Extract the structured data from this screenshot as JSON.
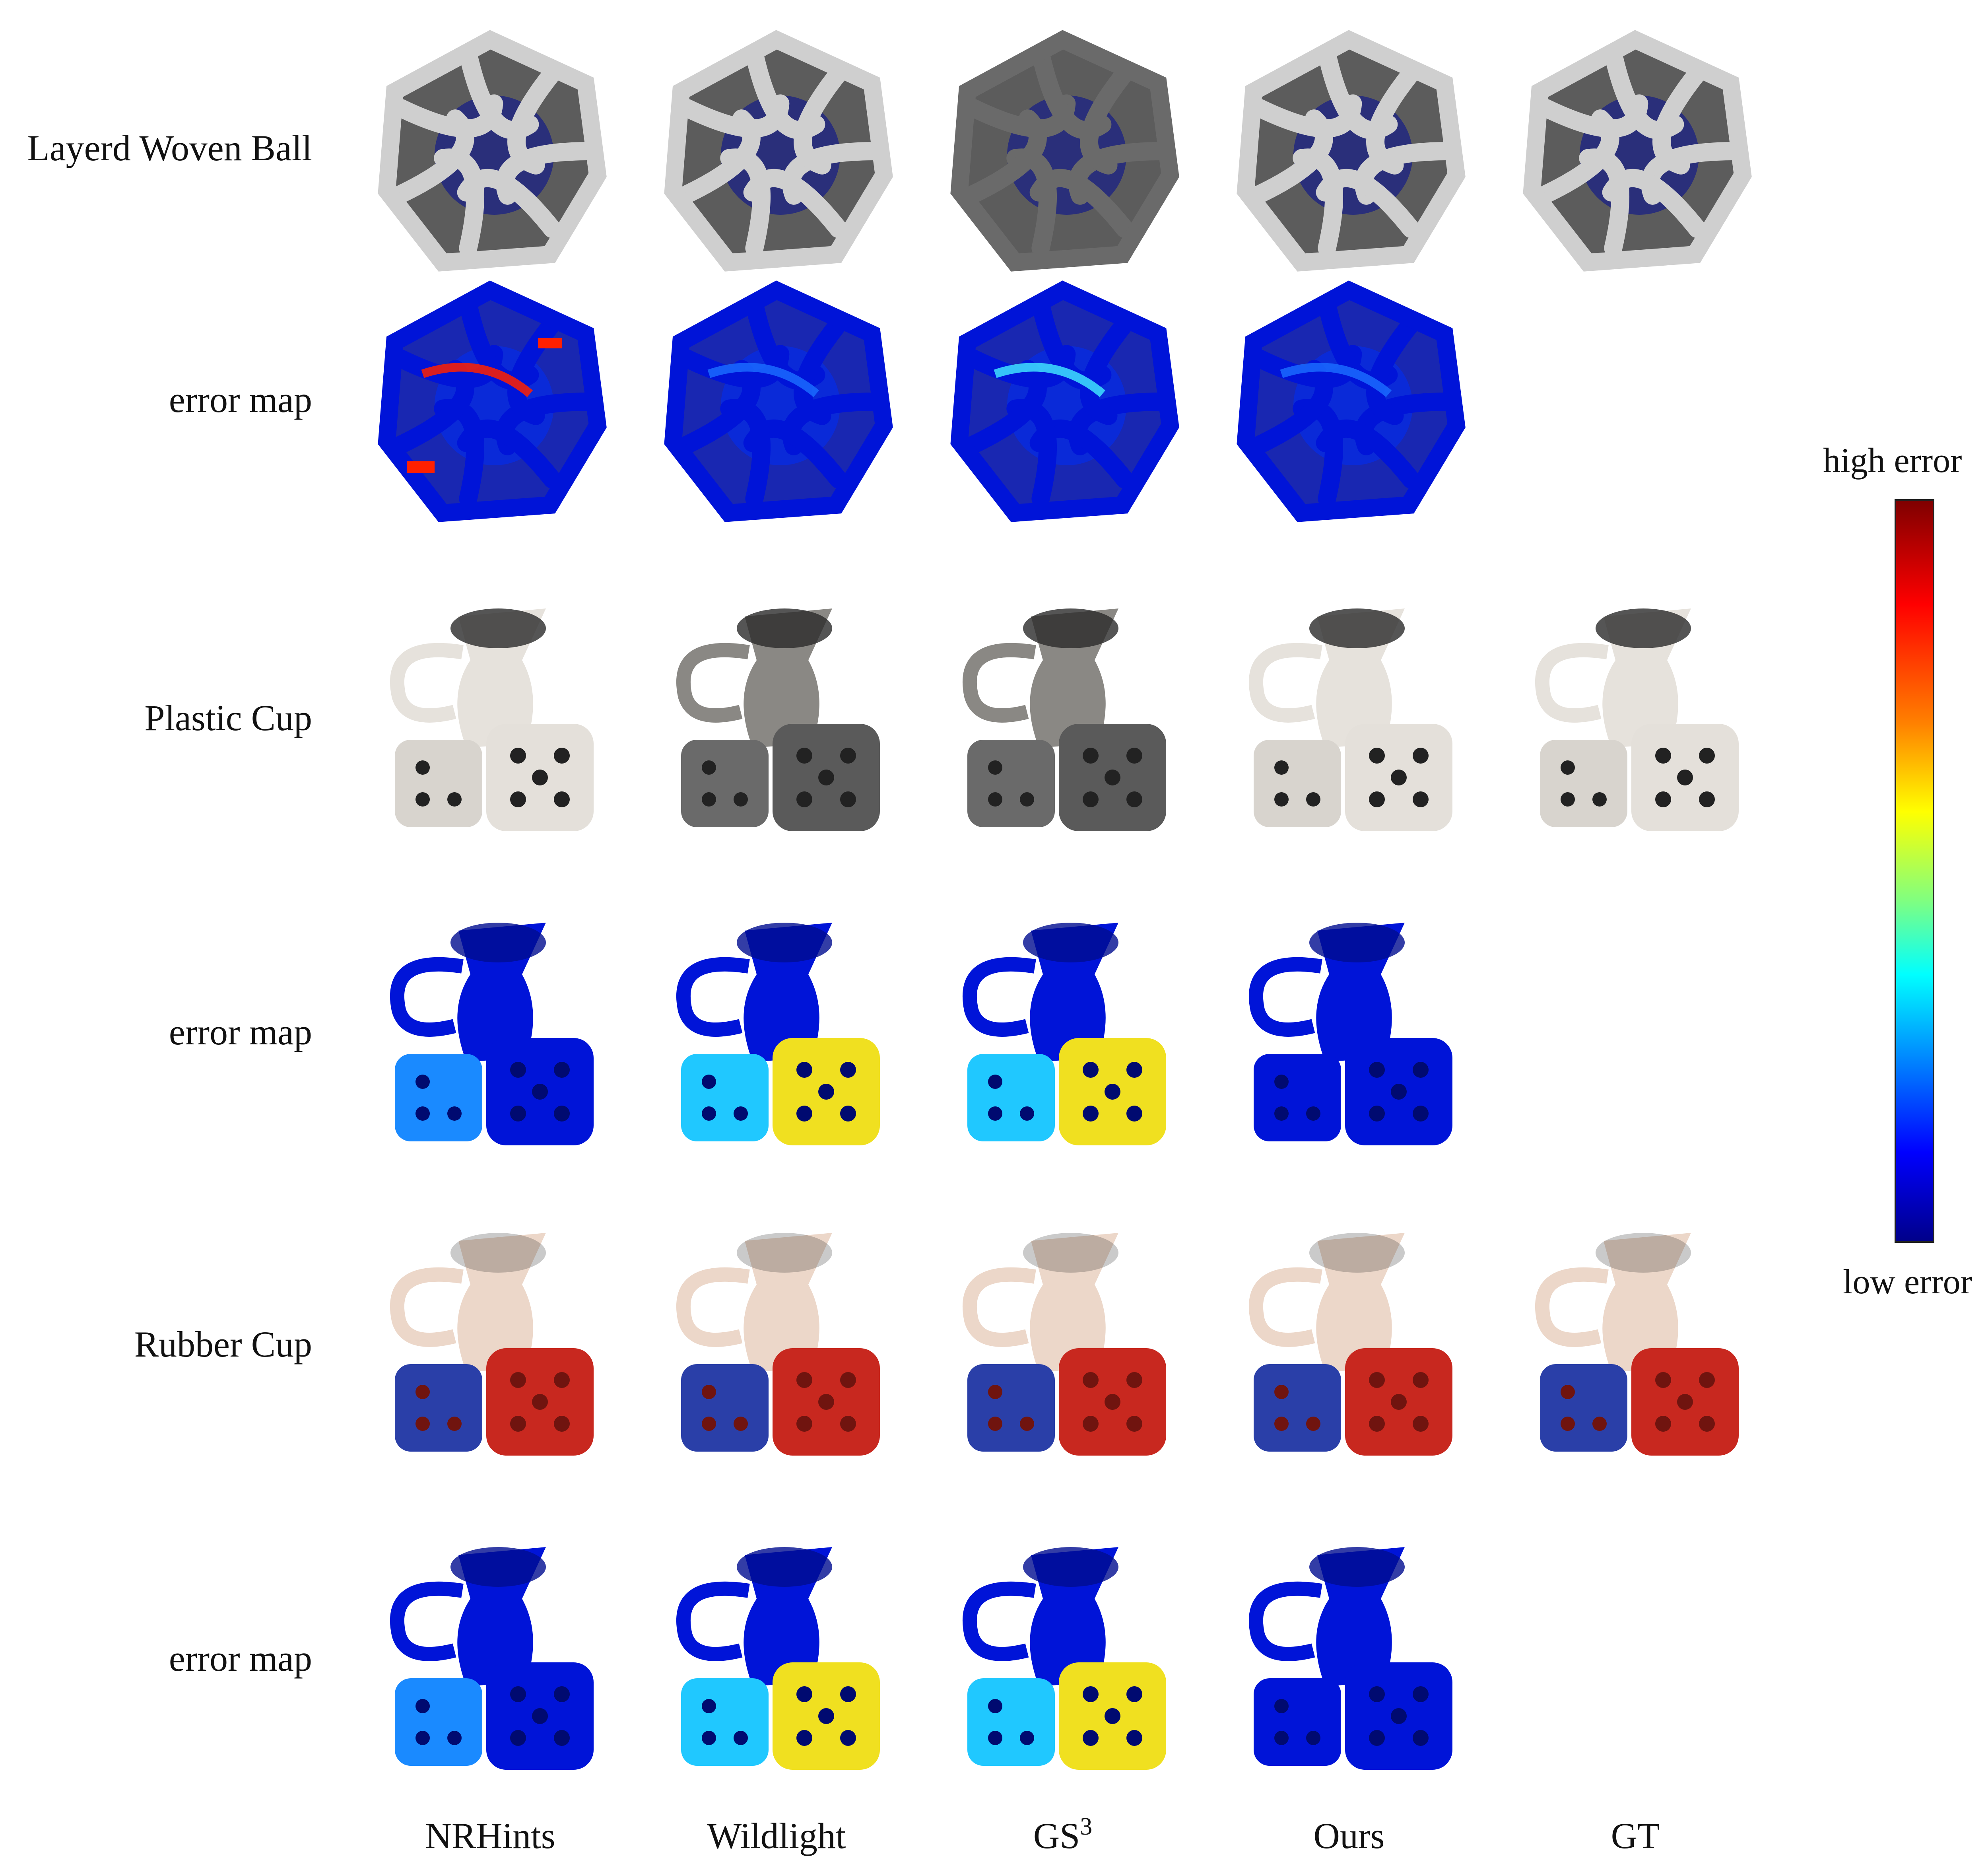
{
  "rows": [
    {
      "label": "Layerd Woven Ball",
      "kind": "render",
      "object": "ball"
    },
    {
      "label": "error map",
      "kind": "error",
      "object": "ball"
    },
    {
      "label": "Plastic Cup",
      "kind": "render",
      "object": "plastic"
    },
    {
      "label": "error map",
      "kind": "error",
      "object": "plastic"
    },
    {
      "label": "Rubber Cup",
      "kind": "render",
      "object": "rubber"
    },
    {
      "label": "error map",
      "kind": "error",
      "object": "rubber"
    }
  ],
  "columns": [
    "NRHints",
    "Wildlight",
    "GS",
    "Ours",
    "GT"
  ],
  "column_superscript": {
    "GS": "3"
  },
  "colorbar": {
    "high_label": "high error",
    "low_label": "low error"
  },
  "colors": {
    "ball_metal_light": "#cfcfcf",
    "ball_metal_dark": "#4a4a4a",
    "ball_core": "#2a2f7a",
    "plastic_light": "#e6e2dc",
    "plastic_dark": "#5a5a5a",
    "rubber_cup": "#ecd7c9",
    "rubber_blue_die": "#2a3fa8",
    "rubber_red_die": "#c8281f",
    "error_low": "#0014d8",
    "error_high": "#ff2000"
  }
}
